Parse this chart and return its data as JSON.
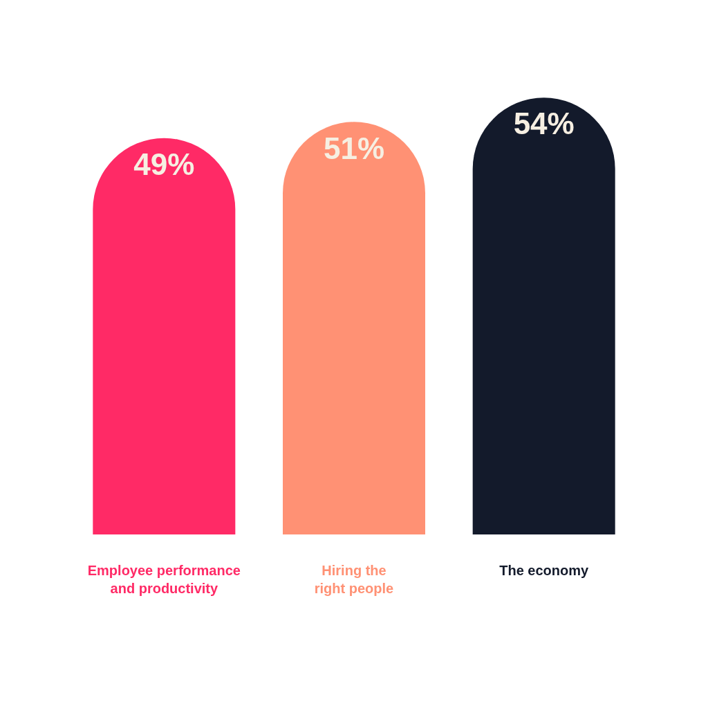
{
  "chart_data": {
    "type": "bar",
    "categories": [
      "Employee performance\nand productivity",
      "Hiring the\nright people",
      "The economy"
    ],
    "values": [
      49,
      51,
      54
    ],
    "colors": [
      "#ff2a66",
      "#ff9174",
      "#131a2b"
    ],
    "value_labels": [
      "49%",
      "51%",
      "54%"
    ],
    "tick_labels": "x",
    "grid": false,
    "legend": false
  }
}
